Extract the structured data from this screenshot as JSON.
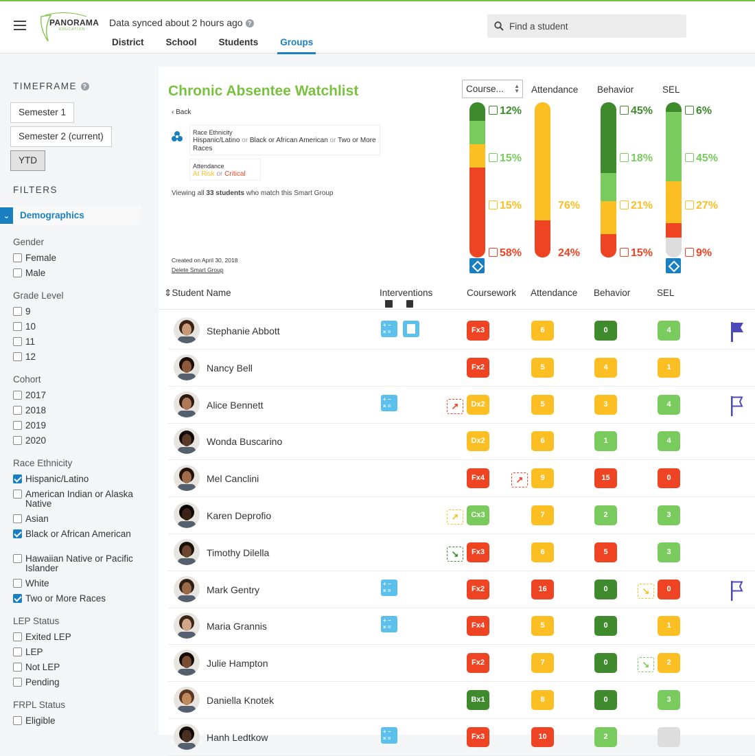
{
  "header": {
    "logo_text": "PANORAMA",
    "logo_sub": "EDUCATION",
    "sync_status": "Data synced about 2 hours ago",
    "nav": [
      "District",
      "School",
      "Students",
      "Groups"
    ],
    "active_nav": "Groups",
    "search_placeholder": "Find a student"
  },
  "sidebar": {
    "timeframe_title": "TIMEFRAME",
    "timeframes": [
      "Semester 1",
      "Semester 2 (current)",
      "YTD"
    ],
    "selected_timeframe": "YTD",
    "filters_title": "FILTERS",
    "demographics_label": "Demographics",
    "groups": [
      {
        "label": "Gender",
        "options": [
          {
            "label": "Female",
            "checked": false
          },
          {
            "label": "Male",
            "checked": false
          }
        ]
      },
      {
        "label": "Grade Level",
        "options": [
          {
            "label": "9",
            "checked": false
          },
          {
            "label": "10",
            "checked": false
          },
          {
            "label": "11",
            "checked": false
          },
          {
            "label": "12",
            "checked": false
          }
        ]
      },
      {
        "label": "Cohort",
        "options": [
          {
            "label": "2017",
            "checked": false
          },
          {
            "label": "2018",
            "checked": false
          },
          {
            "label": "2019",
            "checked": false
          },
          {
            "label": "2020",
            "checked": false
          }
        ]
      },
      {
        "label": "Race Ethnicity",
        "options": [
          {
            "label": "Hispanic/Latino",
            "checked": true
          },
          {
            "label": "American Indian or Alaska Native",
            "checked": false
          },
          {
            "label": "Asian",
            "checked": false
          },
          {
            "label": "Black or African American",
            "checked": true
          },
          {
            "label": "Hawaiian Native or Pacific Islander",
            "checked": false
          },
          {
            "label": "White",
            "checked": false
          },
          {
            "label": "Two or More Races",
            "checked": true
          }
        ]
      },
      {
        "label": "LEP Status",
        "options": [
          {
            "label": "Exited LEP",
            "checked": false
          },
          {
            "label": "LEP",
            "checked": false
          },
          {
            "label": "Not LEP",
            "checked": false
          },
          {
            "label": "Pending",
            "checked": false
          }
        ]
      },
      {
        "label": "FRPL Status",
        "options": [
          {
            "label": "Eligible",
            "checked": false
          }
        ]
      }
    ]
  },
  "group": {
    "title": "Chronic Absentee Watchlist",
    "back_label": "Back",
    "criteria_race_heading": "Race Ethnicity",
    "criteria_race_1": "Hispanic/Latino",
    "criteria_race_2": "Black or African American",
    "criteria_race_3": "Two or More Races",
    "or": "or",
    "criteria_att_heading": "Attendance",
    "criteria_att_1": "At Risk",
    "criteria_att_2": "Critical",
    "viewing_prefix": "Viewing all",
    "student_count": "33 students",
    "viewing_suffix": "who match this Smart Group",
    "created": "Created on April 30, 2018",
    "delete_label": "Delete Smart Group"
  },
  "summary": {
    "course_select": "Course...",
    "columns": [
      "Attendance",
      "Behavior",
      "SEL"
    ],
    "colors": {
      "dark_green": "#3e8a2c",
      "green": "#79cb5d",
      "yellow": "#fbbf24",
      "red": "#ee4423",
      "grey": "#dddddd"
    },
    "coursework": [
      {
        "pct": "12%",
        "v": 12,
        "c": "dark_green"
      },
      {
        "pct": "15%",
        "v": 15,
        "c": "green"
      },
      {
        "pct": "15%",
        "v": 15,
        "c": "yellow"
      },
      {
        "pct": "58%",
        "v": 58,
        "c": "red"
      }
    ],
    "attendance": [
      {
        "pct": "76%",
        "v": 76,
        "c": "yellow"
      },
      {
        "pct": "24%",
        "v": 24,
        "c": "red"
      }
    ],
    "behavior": [
      {
        "pct": "45%",
        "v": 45,
        "c": "dark_green"
      },
      {
        "pct": "18%",
        "v": 18,
        "c": "green"
      },
      {
        "pct": "21%",
        "v": 21,
        "c": "yellow"
      },
      {
        "pct": "15%",
        "v": 15,
        "c": "red"
      }
    ],
    "sel": [
      {
        "pct": "6%",
        "v": 6,
        "c": "dark_green"
      },
      {
        "pct": "45%",
        "v": 45,
        "c": "green"
      },
      {
        "pct": "27%",
        "v": 27,
        "c": "yellow"
      },
      {
        "pct": "9%",
        "v": 9,
        "c": "red"
      },
      {
        "v": 13,
        "c": "grey"
      }
    ]
  },
  "table": {
    "headers": [
      "Student Name",
      "Interventions",
      "Coursework",
      "Attendance",
      "Behavior",
      "SEL"
    ],
    "rows": [
      {
        "name": "Stephanie Abbott",
        "interventions": [
          "calculator-icon",
          "book-icon"
        ],
        "coursework": {
          "v": "Fx3",
          "c": "red"
        },
        "attendance": {
          "v": "6",
          "c": "yellow"
        },
        "behavior": {
          "v": "0",
          "c": "dark_green"
        },
        "sel": {
          "v": "4",
          "c": "green"
        },
        "flag": "filled"
      },
      {
        "name": "Nancy Bell",
        "interventions": [],
        "coursework": {
          "v": "Fx2",
          "c": "red"
        },
        "attendance": {
          "v": "5",
          "c": "yellow"
        },
        "behavior": {
          "v": "4",
          "c": "yellow"
        },
        "sel": {
          "v": "1",
          "c": "yellow"
        }
      },
      {
        "name": "Alice Bennett",
        "interventions": [
          "calculator-icon"
        ],
        "coursework": {
          "v": "Dx2",
          "c": "yellow",
          "trend": "up",
          "tc": "red"
        },
        "attendance": {
          "v": "5",
          "c": "yellow"
        },
        "behavior": {
          "v": "3",
          "c": "yellow"
        },
        "sel": {
          "v": "4",
          "c": "green"
        },
        "flag": "outline"
      },
      {
        "name": "Wonda Buscarino",
        "interventions": [],
        "coursework": {
          "v": "Dx2",
          "c": "yellow"
        },
        "attendance": {
          "v": "6",
          "c": "yellow"
        },
        "behavior": {
          "v": "1",
          "c": "green"
        },
        "sel": {
          "v": "4",
          "c": "green"
        }
      },
      {
        "name": "Mel Canclini",
        "interventions": [],
        "coursework": {
          "v": "Fx4",
          "c": "red"
        },
        "attendance": {
          "v": "9",
          "c": "yellow",
          "trend": "up",
          "tc": "red"
        },
        "behavior": {
          "v": "15",
          "c": "red"
        },
        "sel": {
          "v": "0",
          "c": "red"
        }
      },
      {
        "name": "Karen Deprofio",
        "interventions": [],
        "coursework": {
          "v": "Cx3",
          "c": "green",
          "trend": "up",
          "tc": "yellow"
        },
        "attendance": {
          "v": "7",
          "c": "yellow"
        },
        "behavior": {
          "v": "2",
          "c": "green"
        },
        "sel": {
          "v": "3",
          "c": "green"
        }
      },
      {
        "name": "Timothy Dilella",
        "interventions": [],
        "coursework": {
          "v": "Fx3",
          "c": "red",
          "trend": "down",
          "tc": "dark_green"
        },
        "attendance": {
          "v": "6",
          "c": "yellow"
        },
        "behavior": {
          "v": "5",
          "c": "red"
        },
        "sel": {
          "v": "3",
          "c": "green"
        }
      },
      {
        "name": "Mark Gentry",
        "interventions": [
          "calculator-icon"
        ],
        "coursework": {
          "v": "Fx2",
          "c": "red"
        },
        "attendance": {
          "v": "16",
          "c": "red"
        },
        "behavior": {
          "v": "0",
          "c": "dark_green"
        },
        "sel": {
          "v": "0",
          "c": "red",
          "trend": "down",
          "tc": "yellow"
        },
        "flag": "outline"
      },
      {
        "name": "Maria Grannis",
        "interventions": [
          "calculator-icon"
        ],
        "coursework": {
          "v": "Fx4",
          "c": "red"
        },
        "attendance": {
          "v": "5",
          "c": "yellow"
        },
        "behavior": {
          "v": "0",
          "c": "dark_green"
        },
        "sel": {
          "v": "1",
          "c": "yellow"
        }
      },
      {
        "name": "Julie Hampton",
        "interventions": [],
        "coursework": {
          "v": "Fx2",
          "c": "red"
        },
        "attendance": {
          "v": "7",
          "c": "yellow"
        },
        "behavior": {
          "v": "0",
          "c": "dark_green"
        },
        "sel": {
          "v": "2",
          "c": "yellow",
          "trend": "down",
          "tc": "green"
        }
      },
      {
        "name": "Daniella Knotek",
        "interventions": [],
        "coursework": {
          "v": "Bx1",
          "c": "dark_green"
        },
        "attendance": {
          "v": "8",
          "c": "yellow"
        },
        "behavior": {
          "v": "0",
          "c": "dark_green"
        },
        "sel": {
          "v": "3",
          "c": "green"
        }
      },
      {
        "name": "Hanh Ledtkow",
        "interventions": [
          "calculator-icon"
        ],
        "coursework": {
          "v": "Fx3",
          "c": "red"
        },
        "attendance": {
          "v": "10",
          "c": "red"
        },
        "behavior": {
          "v": "2",
          "c": "green"
        },
        "sel": {
          "v": "",
          "c": "grey"
        }
      }
    ]
  }
}
